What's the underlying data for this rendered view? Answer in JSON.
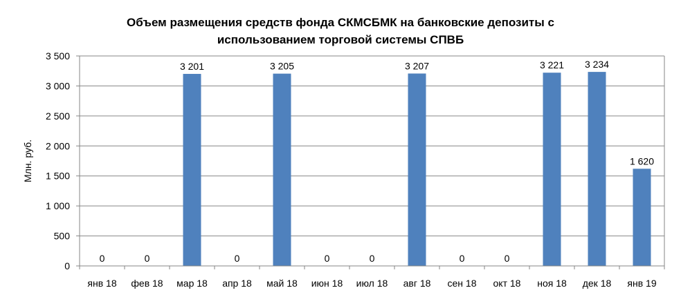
{
  "chart_data": {
    "type": "bar",
    "title_lines": [
      "Объем размещения средств фонда СКМСБМК на банковские депозиты с",
      "использованием торговой системы СПВБ"
    ],
    "xlabel": "",
    "ylabel": "Млн. руб.",
    "ylim": [
      0,
      3500
    ],
    "yticks": [
      0,
      500,
      1000,
      1500,
      2000,
      2500,
      3000,
      3500
    ],
    "ytick_labels": [
      "0",
      "500",
      "1 000",
      "1 500",
      "2 000",
      "2 500",
      "3 000",
      "3 500"
    ],
    "categories": [
      "янв 18",
      "фев 18",
      "мар 18",
      "апр 18",
      "май 18",
      "июн 18",
      "июл 18",
      "авг 18",
      "сен 18",
      "окт 18",
      "ноя 18",
      "дек 18",
      "янв 19"
    ],
    "values": [
      0,
      0,
      3201,
      0,
      3205,
      0,
      0,
      3207,
      0,
      0,
      3221,
      3234,
      1620
    ],
    "data_labels": [
      "0",
      "0",
      "3 201",
      "0",
      "3 205",
      "0",
      "0",
      "3 207",
      "0",
      "0",
      "3 221",
      "3 234",
      "1 620"
    ],
    "grid": true,
    "legend": "none",
    "bar_color": "#4F81BD"
  }
}
